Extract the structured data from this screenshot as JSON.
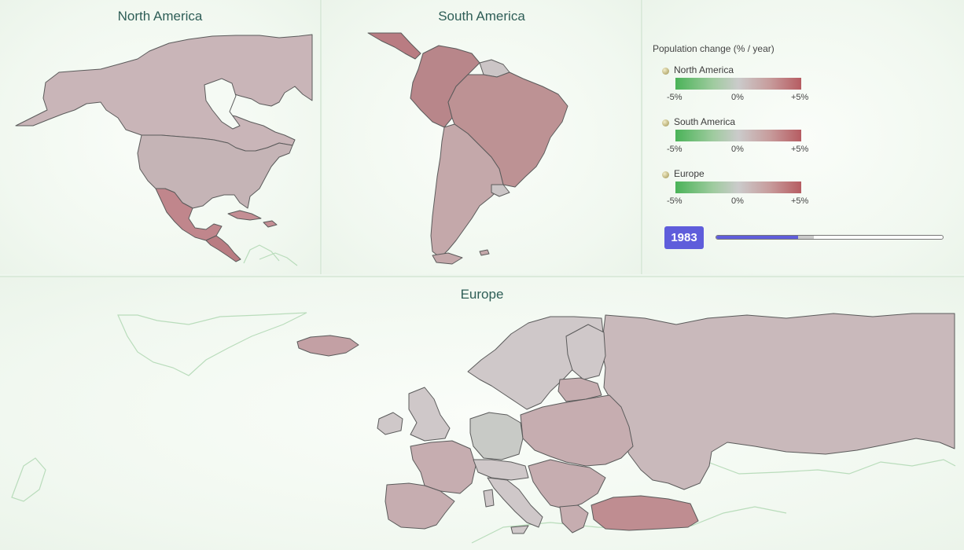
{
  "panels": {
    "north_america": {
      "title": "North America"
    },
    "south_america": {
      "title": "South America"
    },
    "europe": {
      "title": "Europe"
    }
  },
  "legend": {
    "title": "Population change (% / year)",
    "groups": [
      {
        "name": "North America",
        "min": "-5%",
        "mid": "0%",
        "max": "+5%"
      },
      {
        "name": "South America",
        "min": "-5%",
        "mid": "0%",
        "max": "+5%"
      },
      {
        "name": "Europe",
        "min": "-5%",
        "mid": "0%",
        "max": "+5%"
      }
    ],
    "colors": {
      "negative": "#4ab358",
      "neutral": "#cbcbcb",
      "positive": "#b65c62"
    }
  },
  "timeline": {
    "year": "1983",
    "progress": 0.36
  },
  "map_colors": {
    "canada": "#c9b5b8",
    "usa": "#c5b4b6",
    "mexico": "#c0868c",
    "central_america": "#b97c82",
    "caribbean": "#c48e94",
    "south_america_main": "#bd9294",
    "andes_north": "#b8868a",
    "southern_cone": "#c4a8aa",
    "guiana": "#cbc5c6",
    "europe_neutral": "#cfc8c9",
    "europe_slight_neg": "#c8cac6",
    "europe_pos": "#c6adb0",
    "turkey": "#bf8d91",
    "russia": "#c9b9bb",
    "iceland": "#c3a0a4"
  }
}
